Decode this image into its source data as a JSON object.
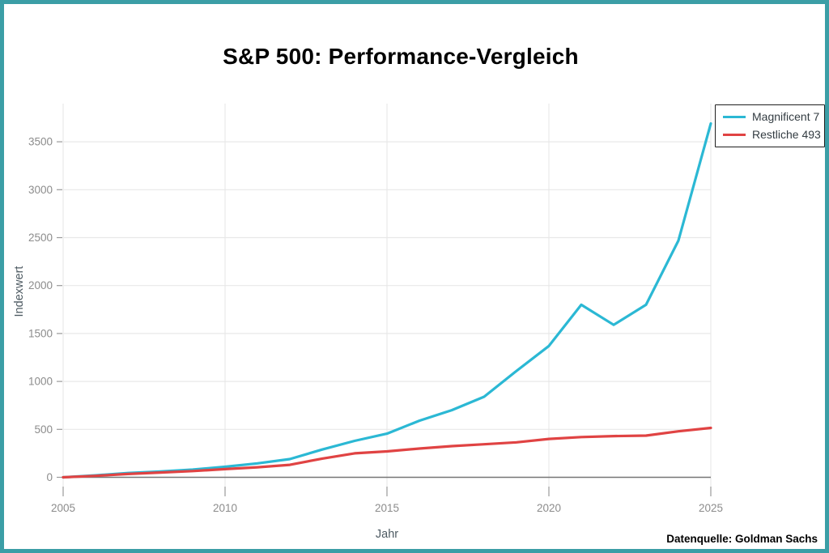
{
  "title": "S&P 500: Performance-Vergleich",
  "axes": {
    "x_label": "Jahr",
    "y_label": "Indexwert"
  },
  "source_note": "Datenquelle: Goldman Sachs",
  "colors": {
    "frame_border": "#3b9ea6",
    "magnificent7": "#2bb8d4",
    "rest493": "#e04343",
    "grid": "#e8e8e8",
    "zero_line": "#767676",
    "tick_mark": "#9a9a9a",
    "tick_text": "#8c8c8c",
    "axis_label_text": "#4d5a62"
  },
  "legend": {
    "position": "top-right"
  },
  "chart_data": {
    "type": "line",
    "title": "S&P 500: Performance-Vergleich",
    "xlabel": "Jahr",
    "ylabel": "Indexwert",
    "grid": true,
    "legend_position": "top-right",
    "xlim": [
      2005,
      2025
    ],
    "ylim": [
      -100,
      3900
    ],
    "xticks": [
      2005,
      2010,
      2015,
      2020,
      2025
    ],
    "yticks": [
      0,
      500,
      1000,
      1500,
      2000,
      2500,
      3000,
      3500
    ],
    "x": [
      2005,
      2006,
      2007,
      2008,
      2009,
      2010,
      2011,
      2012,
      2013,
      2014,
      2015,
      2016,
      2017,
      2018,
      2019,
      2020,
      2021,
      2022,
      2023,
      2024,
      2025
    ],
    "series": [
      {
        "name": "Magnificent 7",
        "color": "#2bb8d4",
        "values": [
          0,
          20,
          45,
          60,
          80,
          110,
          145,
          190,
          290,
          380,
          455,
          590,
          700,
          840,
          1110,
          1370,
          1800,
          1590,
          1800,
          2470,
          3690
        ]
      },
      {
        "name": "Restliche 493",
        "color": "#e04343",
        "values": [
          0,
          15,
          35,
          50,
          65,
          85,
          105,
          130,
          195,
          250,
          270,
          300,
          325,
          345,
          365,
          400,
          420,
          430,
          435,
          480,
          515
        ]
      }
    ]
  }
}
